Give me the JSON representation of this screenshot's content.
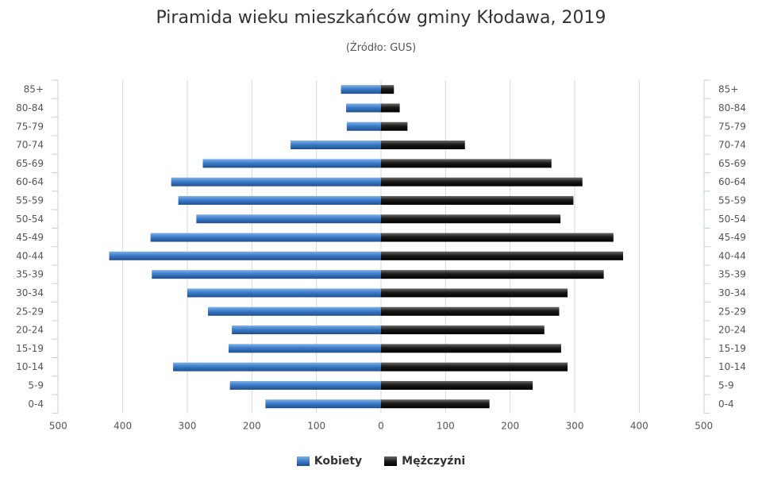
{
  "chart_data": {
    "type": "bar",
    "orientation": "horizontal",
    "layout": "population-pyramid",
    "title": "Piramida wieku mieszkańców gminy Kłodawa, 2019",
    "subtitle": "(Źródło: GUS)",
    "categories": [
      "85+",
      "80-84",
      "75-79",
      "70-74",
      "65-69",
      "60-64",
      "55-59",
      "50-54",
      "45-49",
      "40-44",
      "35-39",
      "30-34",
      "25-29",
      "20-24",
      "15-19",
      "10-14",
      "5-9",
      "0-4"
    ],
    "series": [
      {
        "name": "Kobiety",
        "color": "#3d7cc9",
        "side": "left",
        "values": [
          62,
          54,
          53,
          140,
          276,
          325,
          314,
          286,
          357,
          421,
          355,
          300,
          268,
          231,
          236,
          322,
          234,
          179
        ]
      },
      {
        "name": "Mężczyźni",
        "color": "#1a1a1a",
        "side": "right",
        "values": [
          20,
          29,
          41,
          130,
          264,
          312,
          298,
          278,
          360,
          375,
          345,
          289,
          276,
          253,
          279,
          289,
          235,
          168
        ]
      }
    ],
    "xlim": [
      -500,
      500
    ],
    "x_ticks": [
      500,
      400,
      300,
      200,
      100,
      0,
      100,
      200,
      300,
      400,
      500
    ],
    "grid": true,
    "legend_position": "bottom"
  }
}
